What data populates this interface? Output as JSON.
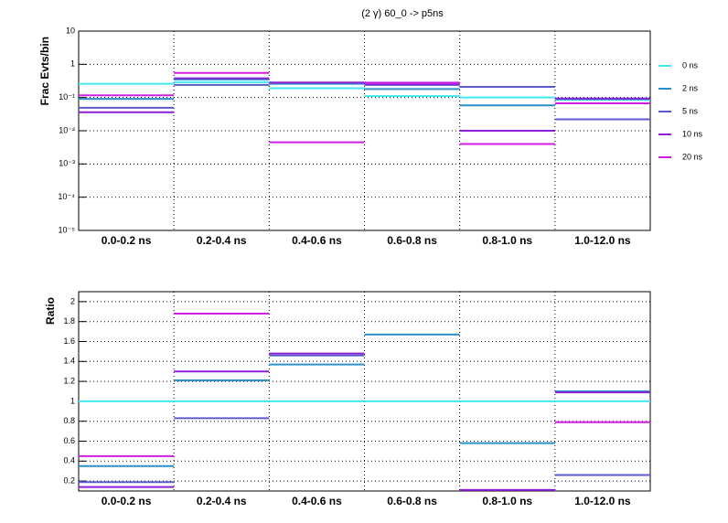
{
  "chart_data": [
    {
      "type": "step",
      "title": "(2 γ) 60_0 -> p5ns",
      "y_label": "Frac Evts/bin",
      "log_y": true,
      "grid": true,
      "legend": "right",
      "categories": [
        "0.0-0.2 ns",
        "0.2-0.4 ns",
        "0.4-0.6 ns",
        "0.6-0.8 ns",
        "0.8-1.0 ns",
        "1.0-12.0 ns"
      ],
      "ylim": [
        1e-05,
        10
      ],
      "yticks": [
        {
          "value": 1e-05,
          "label": "10⁻⁵"
        },
        {
          "value": 0.0001,
          "label": "10⁻⁴"
        },
        {
          "value": 0.001,
          "label": "10⁻³"
        },
        {
          "value": 0.01,
          "label": "10⁻²"
        },
        {
          "value": 0.1,
          "label": "10⁻¹"
        },
        1,
        10
      ],
      "series": [
        {
          "name": "0 ns",
          "color": "#40e8f0",
          "values": [
            0.26,
            0.29,
            0.19,
            0.11,
            0.1,
            0.085
          ]
        },
        {
          "name": "2 ns",
          "color": "#2b8fc9",
          "values": [
            0.091,
            0.35,
            0.26,
            0.18,
            0.058,
            0.09
          ]
        },
        {
          "name": "5 ns",
          "color": "#5a5acd",
          "values": [
            0.049,
            0.24,
            0.28,
            0.24,
            0.21,
            0.022
          ]
        },
        {
          "name": "10 ns",
          "color": "#8c1fd8",
          "values": [
            0.036,
            0.38,
            0.28,
            0.25,
            0.01,
            0.093
          ]
        },
        {
          "name": "20 ns",
          "color": "#d01ee0",
          "values": [
            0.117,
            0.55,
            0.0045,
            0.28,
            0.004,
            0.067
          ]
        }
      ]
    },
    {
      "type": "step",
      "y_label": "Ratio",
      "log_y": false,
      "grid": true,
      "categories": [
        "0.0-0.2 ns",
        "0.2-0.4 ns",
        "0.4-0.6 ns",
        "0.6-0.8 ns",
        "0.8-1.0 ns",
        "1.0-12.0 ns"
      ],
      "ylim": [
        0.1,
        2.1
      ],
      "yticks": [
        0.2,
        0.4,
        0.6,
        0.8,
        1,
        1.2,
        1.4,
        1.6,
        1.8,
        2
      ],
      "series": [
        {
          "name": "0 ns",
          "color": "#40e8f0",
          "values": [
            1,
            1,
            1,
            1,
            1,
            1
          ]
        },
        {
          "name": "2 ns",
          "color": "#2b8fc9",
          "values": [
            0.35,
            1.21,
            1.37,
            1.67,
            0.58,
            1.1
          ]
        },
        {
          "name": "5 ns",
          "color": "#5a5acd",
          "values": [
            0.19,
            0.83,
            1.46,
            null,
            null,
            0.26
          ]
        },
        {
          "name": "10 ns",
          "color": "#8c1fd8",
          "values": [
            0.14,
            1.3,
            1.48,
            null,
            0.11,
            1.09
          ]
        },
        {
          "name": "20 ns",
          "color": "#d01ee0",
          "values": [
            0.45,
            1.88,
            null,
            null,
            null,
            0.79
          ]
        }
      ]
    }
  ]
}
